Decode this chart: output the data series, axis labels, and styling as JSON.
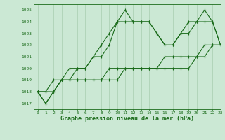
{
  "bg_color": "#cbe8d4",
  "grid_color": "#a8cdb0",
  "line_color": "#1a6b1a",
  "xlabel": "Graphe pression niveau de la mer (hPa)",
  "xlim": [
    -0.5,
    23
  ],
  "ylim": [
    1016.5,
    1025.5
  ],
  "yticks": [
    1017,
    1018,
    1019,
    1020,
    1021,
    1022,
    1023,
    1024,
    1025
  ],
  "xticks": [
    0,
    1,
    2,
    3,
    4,
    5,
    6,
    7,
    8,
    9,
    10,
    11,
    12,
    13,
    14,
    15,
    16,
    17,
    18,
    19,
    20,
    21,
    22,
    23
  ],
  "series": [
    [
      1018,
      1017,
      1018,
      1019,
      1020,
      1020,
      1020,
      1021,
      1022,
      1023,
      1024,
      1025,
      1024,
      1024,
      1024,
      1023,
      1022,
      1022,
      1023,
      1024,
      1024,
      1025,
      1024,
      1022
    ],
    [
      1018,
      1017,
      1018,
      1019,
      1019,
      1020,
      1020,
      1021,
      1021,
      1022,
      1024,
      1024,
      1024,
      1024,
      1024,
      1023,
      1022,
      1022,
      1023,
      1023,
      1024,
      1024,
      1024,
      1022
    ],
    [
      1018,
      1018,
      1019,
      1019,
      1019,
      1019,
      1019,
      1019,
      1019,
      1020,
      1020,
      1020,
      1020,
      1020,
      1020,
      1020,
      1021,
      1021,
      1021,
      1021,
      1021,
      1022,
      1022,
      1022
    ],
    [
      1018,
      1018,
      1018,
      1019,
      1019,
      1019,
      1019,
      1019,
      1019,
      1019,
      1019,
      1020,
      1020,
      1020,
      1020,
      1020,
      1020,
      1020,
      1020,
      1020,
      1021,
      1021,
      1022,
      1022
    ]
  ]
}
